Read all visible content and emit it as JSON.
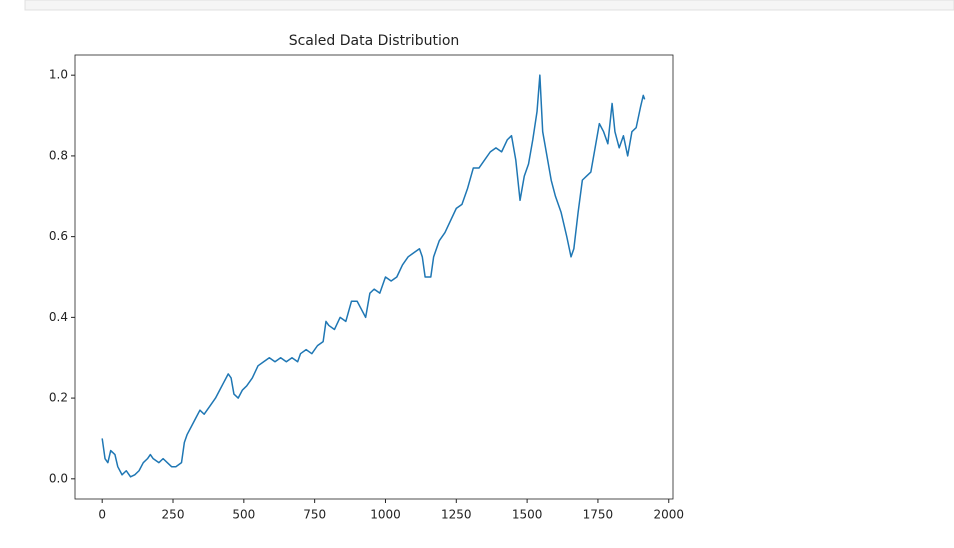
{
  "chart_data": {
    "type": "line",
    "title": "Scaled Data Distribution",
    "x": [
      0,
      10,
      20,
      30,
      45,
      55,
      70,
      85,
      100,
      115,
      130,
      145,
      160,
      170,
      180,
      200,
      215,
      230,
      245,
      260,
      280,
      290,
      300,
      315,
      330,
      345,
      360,
      380,
      400,
      415,
      430,
      445,
      455,
      465,
      480,
      495,
      510,
      530,
      550,
      570,
      590,
      610,
      630,
      650,
      670,
      690,
      700,
      720,
      740,
      760,
      780,
      790,
      800,
      820,
      840,
      860,
      880,
      900,
      915,
      930,
      945,
      960,
      980,
      1000,
      1020,
      1040,
      1060,
      1080,
      1100,
      1120,
      1130,
      1140,
      1160,
      1170,
      1190,
      1210,
      1230,
      1250,
      1270,
      1290,
      1310,
      1330,
      1350,
      1370,
      1390,
      1410,
      1430,
      1445,
      1460,
      1475,
      1490,
      1505,
      1520,
      1535,
      1545,
      1555,
      1570,
      1585,
      1600,
      1620,
      1640,
      1655,
      1665,
      1680,
      1695,
      1710,
      1725,
      1740,
      1755,
      1770,
      1785,
      1800,
      1810,
      1825,
      1840,
      1855,
      1870,
      1885,
      1900,
      1910,
      1915
    ],
    "series": [
      {
        "color": "#1f77b4",
        "values": [
          0.1,
          0.05,
          0.04,
          0.07,
          0.06,
          0.03,
          0.01,
          0.02,
          0.005,
          0.01,
          0.02,
          0.04,
          0.05,
          0.06,
          0.05,
          0.04,
          0.05,
          0.04,
          0.03,
          0.03,
          0.04,
          0.09,
          0.11,
          0.13,
          0.15,
          0.17,
          0.16,
          0.18,
          0.2,
          0.22,
          0.24,
          0.26,
          0.25,
          0.21,
          0.2,
          0.22,
          0.23,
          0.25,
          0.28,
          0.29,
          0.3,
          0.29,
          0.3,
          0.29,
          0.3,
          0.29,
          0.31,
          0.32,
          0.31,
          0.33,
          0.34,
          0.39,
          0.38,
          0.37,
          0.4,
          0.39,
          0.44,
          0.44,
          0.42,
          0.4,
          0.46,
          0.47,
          0.46,
          0.5,
          0.49,
          0.5,
          0.53,
          0.55,
          0.56,
          0.57,
          0.55,
          0.5,
          0.5,
          0.55,
          0.59,
          0.61,
          0.64,
          0.67,
          0.68,
          0.72,
          0.77,
          0.77,
          0.79,
          0.81,
          0.82,
          0.81,
          0.84,
          0.85,
          0.79,
          0.69,
          0.75,
          0.78,
          0.84,
          0.91,
          1.0,
          0.86,
          0.8,
          0.74,
          0.7,
          0.66,
          0.6,
          0.55,
          0.57,
          0.66,
          0.74,
          0.75,
          0.76,
          0.82,
          0.88,
          0.86,
          0.83,
          0.93,
          0.86,
          0.82,
          0.85,
          0.8,
          0.86,
          0.87,
          0.92,
          0.95,
          0.94
        ]
      }
    ],
    "xlim": [
      -96,
      2015
    ],
    "ylim": [
      -0.05,
      1.05
    ],
    "xticks": [
      0,
      250,
      500,
      750,
      1000,
      1250,
      1500,
      1750,
      2000
    ],
    "yticks": [
      {
        "value": 0,
        "label": "0.0"
      },
      0.2,
      0.4,
      0.6,
      0.8,
      {
        "value": 1,
        "label": "1.0"
      }
    ]
  }
}
